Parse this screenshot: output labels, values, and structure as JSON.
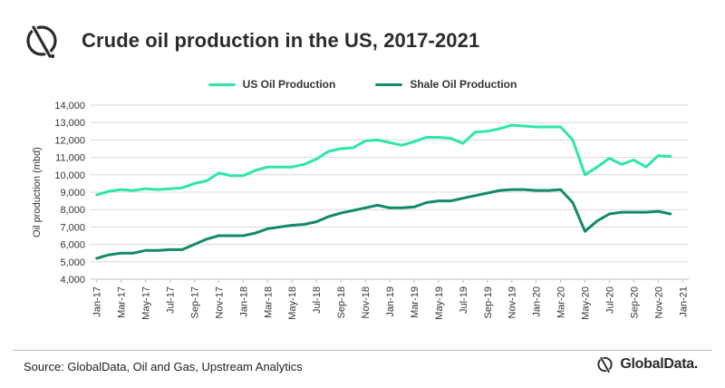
{
  "header": {
    "title": "Crude oil production in the US, 2017-2021",
    "logo_icon": "globaldata-mark-icon"
  },
  "footer": {
    "source": "Source: GlobalData, Oil and Gas, Upstream Analytics",
    "brand": "GlobalData."
  },
  "colors": {
    "us_series": "#2ee6a8",
    "shale_series": "#128a6a",
    "grid": "#d9d9d9",
    "axis": "#bfbfbf",
    "text": "#333333"
  },
  "chart_data": {
    "type": "line",
    "ylabel": "Oil production (mbd)",
    "xlabel": "",
    "ylim": [
      4000,
      14000
    ],
    "yticks": [
      4000,
      5000,
      6000,
      7000,
      8000,
      9000,
      10000,
      11000,
      12000,
      13000,
      14000
    ],
    "ytick_labels": [
      "4,000",
      "5,000",
      "6,000",
      "7,000",
      "8,000",
      "9,000",
      "10,000",
      "11,000",
      "12,000",
      "13,000",
      "14,000"
    ],
    "grid": "horizontal",
    "legend_position": "top-center",
    "x_tick_labels": [
      "Jan-17",
      "Mar-17",
      "May-17",
      "Jul-17",
      "Sep-17",
      "Nov-17",
      "Jan-18",
      "Mar-18",
      "May-18",
      "Jul-18",
      "Sep-18",
      "Nov-18",
      "Jan-19",
      "Mar-19",
      "May-19",
      "Jul-19",
      "Sep-19",
      "Nov-19",
      "Jan-20",
      "Mar-20",
      "May-20",
      "Jul-20",
      "Sep-20",
      "Nov-20",
      "Jan-21"
    ],
    "x": [
      "Jan-17",
      "Feb-17",
      "Mar-17",
      "Apr-17",
      "May-17",
      "Jun-17",
      "Jul-17",
      "Aug-17",
      "Sep-17",
      "Oct-17",
      "Nov-17",
      "Dec-17",
      "Jan-18",
      "Feb-18",
      "Mar-18",
      "Apr-18",
      "May-18",
      "Jun-18",
      "Jul-18",
      "Aug-18",
      "Sep-18",
      "Oct-18",
      "Nov-18",
      "Dec-18",
      "Jan-19",
      "Feb-19",
      "Mar-19",
      "Apr-19",
      "May-19",
      "Jun-19",
      "Jul-19",
      "Aug-19",
      "Sep-19",
      "Oct-19",
      "Nov-19",
      "Dec-19",
      "Jan-20",
      "Feb-20",
      "Mar-20",
      "Apr-20",
      "May-20",
      "Jun-20",
      "Jul-20",
      "Aug-20",
      "Sep-20",
      "Oct-20",
      "Nov-20",
      "Dec-20"
    ],
    "series": [
      {
        "name": "US Oil Production",
        "color": "#2ee6a8",
        "values": [
          8850,
          9050,
          9150,
          9100,
          9200,
          9150,
          9200,
          9250,
          9500,
          9650,
          10100,
          9950,
          9950,
          10250,
          10450,
          10450,
          10450,
          10600,
          10900,
          11350,
          11500,
          11550,
          11950,
          12000,
          11850,
          11700,
          11900,
          12150,
          12150,
          12100,
          11800,
          12450,
          12500,
          12650,
          12850,
          12800,
          12750,
          12750,
          12750,
          12000,
          10000,
          10450,
          10950,
          10600,
          10850,
          10450,
          11100,
          11050
        ]
      },
      {
        "name": "Shale Oil Production",
        "color": "#128a6a",
        "values": [
          5200,
          5400,
          5500,
          5500,
          5650,
          5650,
          5700,
          5700,
          6000,
          6300,
          6500,
          6500,
          6500,
          6650,
          6900,
          7000,
          7100,
          7150,
          7300,
          7600,
          7800,
          7950,
          8100,
          8250,
          8100,
          8100,
          8150,
          8400,
          8500,
          8500,
          8650,
          8800,
          8950,
          9100,
          9150,
          9150,
          9100,
          9100,
          9150,
          8400,
          6750,
          7350,
          7750,
          7850,
          7850,
          7850,
          7900,
          7750
        ]
      }
    ]
  }
}
